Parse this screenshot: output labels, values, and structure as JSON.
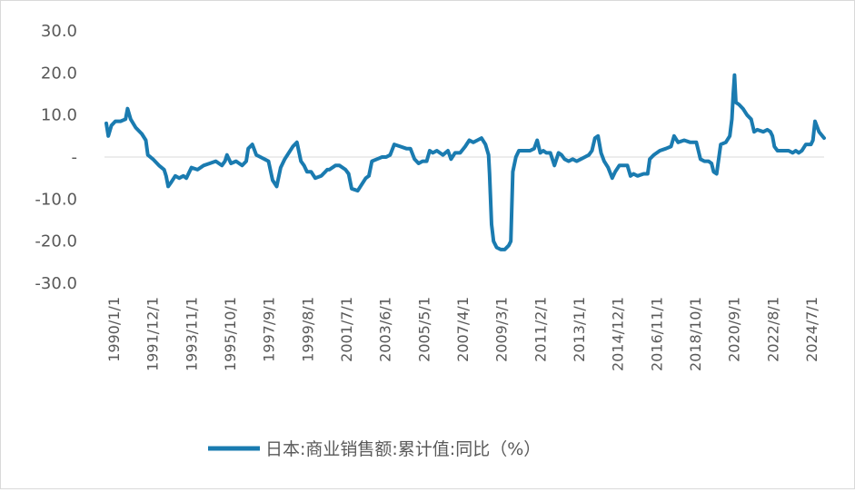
{
  "chart_data": {
    "type": "line",
    "title": "",
    "xlabel": "",
    "ylabel": "",
    "ylim": [
      -30,
      30
    ],
    "y_ticks": [
      {
        "value": 30,
        "label": "30.0"
      },
      {
        "value": 20,
        "label": "20.0"
      },
      {
        "value": 10,
        "label": "10.0"
      },
      {
        "value": 0,
        "label": "-"
      },
      {
        "value": -10,
        "label": "-10.0"
      },
      {
        "value": -20,
        "label": "-20.0"
      },
      {
        "value": -30,
        "label": "-30.0"
      }
    ],
    "x_tick_labels": [
      "1990/1/1",
      "1991/12/1",
      "1993/11/1",
      "1995/10/1",
      "1997/9/1",
      "1999/8/1",
      "2001/7/1",
      "2003/6/1",
      "2005/5/1",
      "2007/4/1",
      "2009/3/1",
      "2011/2/1",
      "2013/1/1",
      "2014/12/1",
      "2016/11/1",
      "2018/10/1",
      "2020/9/1",
      "2022/8/1",
      "2024/7/1"
    ],
    "legend_position": "bottom",
    "grid": false,
    "series": [
      {
        "name": "日本:商业销售额:累计值:同比（%）",
        "color": "#1a7bb0",
        "x": [
          1990.0,
          1990.1,
          1990.25,
          1990.45,
          1990.7,
          1990.95,
          1991.05,
          1991.2,
          1991.45,
          1991.75,
          1991.95,
          1992.05,
          1992.3,
          1992.6,
          1992.85,
          1992.95,
          1993.05,
          1993.2,
          1993.4,
          1993.6,
          1993.8,
          1993.95,
          1994.2,
          1994.5,
          1994.8,
          1995.1,
          1995.4,
          1995.7,
          1995.85,
          1995.95,
          1996.15,
          1996.4,
          1996.7,
          1996.9,
          1997.0,
          1997.2,
          1997.4,
          1997.6,
          1997.8,
          1998.0,
          1998.2,
          1998.4,
          1998.6,
          1998.8,
          1999.0,
          1999.2,
          1999.4,
          1999.6,
          1999.75,
          1999.9,
          2000.1,
          2000.3,
          2000.6,
          2000.8,
          2000.9,
          2001.0,
          2001.3,
          2001.5,
          2001.8,
          2001.95,
          2002.1,
          2002.4,
          2002.6,
          2002.8,
          2002.95,
          2003.1,
          2003.35,
          2003.6,
          2003.8,
          2004.0,
          2004.2,
          2004.5,
          2004.8,
          2005.0,
          2005.2,
          2005.4,
          2005.6,
          2005.8,
          2005.95,
          2006.1,
          2006.3,
          2006.6,
          2006.85,
          2007.0,
          2007.2,
          2007.45,
          2007.7,
          2007.9,
          2008.1,
          2008.3,
          2008.5,
          2008.7,
          2008.85,
          2008.9,
          2009.0,
          2009.1,
          2009.25,
          2009.45,
          2009.65,
          2009.85,
          2009.95,
          2010.05,
          2010.2,
          2010.35,
          2010.5,
          2010.7,
          2010.9,
          2011.1,
          2011.25,
          2011.4,
          2011.55,
          2011.7,
          2011.9,
          2012.1,
          2012.3,
          2012.45,
          2012.6,
          2012.8,
          2013.0,
          2013.2,
          2013.4,
          2013.6,
          2013.8,
          2013.95,
          2014.1,
          2014.25,
          2014.4,
          2014.55,
          2014.75,
          2014.95,
          2015.1,
          2015.3,
          2015.5,
          2015.7,
          2015.85,
          2016.0,
          2016.2,
          2016.5,
          2016.7,
          2016.8,
          2017.0,
          2017.3,
          2017.6,
          2017.85,
          2018.0,
          2018.2,
          2018.5,
          2018.8,
          2018.95,
          2019.1,
          2019.3,
          2019.5,
          2019.7,
          2019.85,
          2019.95,
          2020.1,
          2020.3,
          2020.55,
          2020.75,
          2020.85,
          2020.92,
          2020.98,
          2021.05,
          2021.2,
          2021.4,
          2021.6,
          2021.8,
          2021.95,
          2022.1,
          2022.4,
          2022.6,
          2022.75,
          2022.85,
          2022.95,
          2023.1,
          2023.4,
          2023.65,
          2023.85,
          2024.0,
          2024.15,
          2024.3,
          2024.5,
          2024.65,
          2024.75,
          2024.85,
          2024.95,
          2025.15,
          2025.4
        ],
        "values": [
          8.0,
          5.0,
          7.5,
          8.5,
          8.5,
          9.0,
          11.5,
          9.0,
          7.0,
          5.5,
          4.0,
          0.5,
          -0.5,
          -2.0,
          -3.0,
          -4.5,
          -7.0,
          -6.0,
          -4.5,
          -5.0,
          -4.5,
          -5.0,
          -2.5,
          -3.0,
          -2.0,
          -1.5,
          -1.0,
          -2.0,
          -1.0,
          0.5,
          -1.5,
          -1.0,
          -2.0,
          -1.0,
          2.0,
          3.0,
          0.5,
          0.0,
          -0.5,
          -1.0,
          -5.5,
          -7.0,
          -2.5,
          -0.5,
          1.0,
          2.5,
          3.5,
          -1.0,
          -2.0,
          -3.5,
          -3.5,
          -5.0,
          -4.5,
          -3.5,
          -3.0,
          -3.0,
          -2.0,
          -2.0,
          -3.0,
          -4.0,
          -7.5,
          -8.0,
          -6.5,
          -5.0,
          -4.5,
          -1.0,
          -0.5,
          0.0,
          0.0,
          0.5,
          3.0,
          2.5,
          2.0,
          2.0,
          -0.5,
          -1.5,
          -1.0,
          -1.0,
          1.5,
          1.0,
          1.5,
          0.5,
          1.5,
          -0.5,
          1.0,
          1.0,
          2.5,
          4.0,
          3.5,
          4.0,
          4.5,
          3.0,
          0.5,
          -4.0,
          -16.0,
          -20.0,
          -21.5,
          -22.0,
          -22.0,
          -21.0,
          -20.0,
          -3.5,
          0.0,
          1.5,
          1.5,
          1.5,
          1.5,
          2.0,
          4.0,
          1.0,
          1.5,
          1.0,
          1.0,
          -2.0,
          1.0,
          0.5,
          -0.5,
          -1.0,
          -0.5,
          -1.0,
          -0.5,
          0.0,
          0.5,
          1.5,
          4.5,
          5.0,
          1.0,
          -1.0,
          -2.5,
          -5.0,
          -3.5,
          -2.0,
          -2.0,
          -2.0,
          -4.5,
          -4.0,
          -4.5,
          -4.0,
          -4.0,
          -0.5,
          0.5,
          1.5,
          2.0,
          2.5,
          5.0,
          3.5,
          4.0,
          3.5,
          3.5,
          3.5,
          -0.5,
          -1.0,
          -1.0,
          -1.5,
          -3.5,
          -4.0,
          3.0,
          3.5,
          5.0,
          9.0,
          15.0,
          19.5,
          13.0,
          12.5,
          11.5,
          10.0,
          9.0,
          6.0,
          6.5,
          6.0,
          6.5,
          6.0,
          5.0,
          2.5,
          1.5,
          1.5,
          1.5,
          1.0,
          1.5,
          1.0,
          1.5,
          3.0,
          3.0,
          3.0,
          4.0,
          8.5,
          6.0,
          4.5
        ]
      }
    ]
  }
}
